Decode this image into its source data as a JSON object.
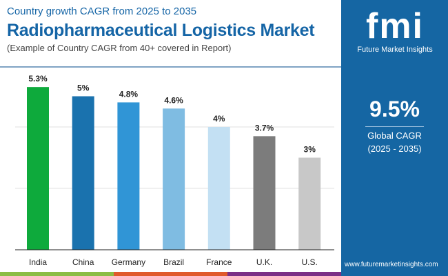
{
  "header": {
    "subtitle": "Country growth CAGR from 2025 to 2035",
    "title": "Radiopharmaceutical Logistics Market",
    "note": "(Example of Country CAGR from 40+ covered in Report)"
  },
  "panel": {
    "logo_text": "fmi",
    "brand": "Future Market Insights",
    "cagr_value": "9.5%",
    "cagr_label": "Global CAGR",
    "cagr_period": "(2025 - 2035)",
    "url": "www.futuremarketinsights.com"
  },
  "chart_data": {
    "type": "bar",
    "categories": [
      "India",
      "China",
      "Germany",
      "Brazil",
      "France",
      "U.K.",
      "U.S."
    ],
    "values": [
      5.3,
      5,
      4.8,
      4.6,
      4,
      3.7,
      3
    ],
    "labels": [
      "5.3%",
      "5%",
      "4.8%",
      "4.6%",
      "4%",
      "3.7%",
      "3%"
    ],
    "colors": [
      "#0eaa3c",
      "#1a72ae",
      "#3095d6",
      "#7fbce2",
      "#c3e0f3",
      "#7c7c7c",
      "#c8c8c8"
    ],
    "ylim": [
      0,
      6
    ],
    "grid": true,
    "title": "",
    "xlabel": "",
    "ylabel": ""
  },
  "colors": {
    "brand": "#1566a3",
    "stripe": [
      "#8bbd45",
      "#e05a2b",
      "#7b2f86"
    ]
  }
}
